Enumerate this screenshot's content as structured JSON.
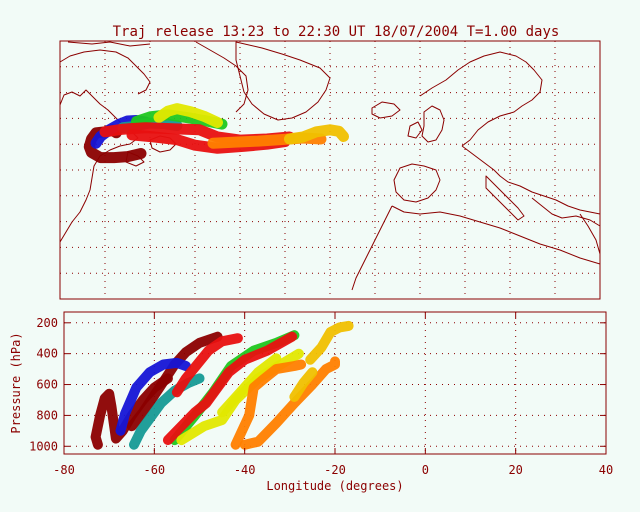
{
  "chart_data": [
    {
      "type": "map",
      "title": "Traj release 13:23 to 22:30 UT 18/07/2004    T=1.00 days",
      "grid": true,
      "colors": {
        "frame": "#8b0000",
        "coast": "#8b0000",
        "grid": "#8b0000",
        "text": "#8b0000",
        "background": "#f2fbf7"
      },
      "lon_range": [
        -80,
        40
      ],
      "lat_range": [
        20,
        70
      ],
      "trajectories": [
        {
          "color": "#8b0000",
          "lon": [
            -67.5,
            -68.5,
            -70,
            -72,
            -73,
            -73.5,
            -73,
            -71,
            -68,
            -65,
            -62
          ],
          "lat": [
            52.2,
            52.8,
            52.4,
            52.2,
            51.0,
            49.5,
            48.4,
            47.4,
            47.4,
            47.6,
            48.2
          ]
        },
        {
          "color": "#1515d6",
          "lon": [
            -72,
            -71,
            -69,
            -67,
            -65,
            -63,
            -61
          ],
          "lat": [
            50.2,
            51.5,
            52.8,
            53.8,
            54.5,
            54.6,
            54.3
          ]
        },
        {
          "color": "#159a95",
          "lon": [
            -66,
            -64,
            -62,
            -60,
            -57,
            -54
          ],
          "lat": [
            53.2,
            53.4,
            53.8,
            54.1,
            54.0,
            53.6
          ]
        },
        {
          "color": "#1fc71f",
          "lon": [
            -63,
            -60,
            -56,
            -52,
            -48,
            -44
          ],
          "lat": [
            54.4,
            55.3,
            55.7,
            55.2,
            54.6,
            53.9
          ]
        },
        {
          "color": "#e1e800",
          "lon": [
            -58,
            -56,
            -54,
            -51,
            -48,
            -45
          ],
          "lat": [
            55.2,
            56.4,
            56.9,
            56.3,
            55.4,
            54.2
          ]
        },
        {
          "color": "#e81010",
          "lon": [
            -70,
            -66,
            -61,
            -55,
            -49,
            -45,
            -40,
            -34,
            -29
          ],
          "lat": [
            52.4,
            52.9,
            53.2,
            53.0,
            52.8,
            51.4,
            50.8,
            51.0,
            51.4
          ]
        },
        {
          "color": "#e81010",
          "lon": [
            -64,
            -59,
            -54,
            -50,
            -45,
            -39,
            -34,
            -30
          ],
          "lat": [
            51.8,
            51.4,
            50.9,
            49.8,
            49.2,
            49.6,
            50.0,
            50.5
          ]
        },
        {
          "color": "#ff8000",
          "lon": [
            -46,
            -41,
            -36,
            -31,
            -26,
            -22
          ],
          "lat": [
            50.2,
            50.4,
            50.6,
            50.9,
            51.2,
            51.0
          ]
        },
        {
          "color": "#f0c000",
          "lon": [
            -29,
            -26,
            -23,
            -20,
            -18,
            -17
          ],
          "lat": [
            51.0,
            51.4,
            52.4,
            52.8,
            52.5,
            51.5
          ]
        }
      ]
    },
    {
      "type": "line",
      "xlabel": "Longitude  (degrees)",
      "ylabel": "Pressure  (hPa)",
      "xlim": [
        -80,
        40
      ],
      "ylim": [
        1050,
        130
      ],
      "xticks": [
        -80,
        -60,
        -40,
        -20,
        0,
        20,
        40
      ],
      "yticks": [
        200,
        400,
        600,
        800,
        1000
      ],
      "series": [
        {
          "color": "#8b0000",
          "x": [
            -72.5,
            -73,
            -72,
            -71,
            -70,
            -69.5,
            -68.5,
            -67,
            -65,
            -62.5,
            -60,
            -57
          ],
          "y": [
            990,
            940,
            800,
            690,
            660,
            740,
            950,
            900,
            800,
            700,
            620,
            560
          ]
        },
        {
          "color": "#8b0000",
          "x": [
            -65,
            -62.5,
            -60,
            -57.5,
            -55.5,
            -53,
            -50,
            -46
          ],
          "y": [
            870,
            780,
            670,
            560,
            470,
            390,
            330,
            290
          ]
        },
        {
          "color": "#1515d6",
          "x": [
            -67.5,
            -66.5,
            -64,
            -61,
            -58,
            -55,
            -53
          ],
          "y": [
            900,
            790,
            620,
            520,
            470,
            460,
            480
          ]
        },
        {
          "color": "#159a95",
          "x": [
            -64.5,
            -63,
            -61,
            -58.5,
            -55.5,
            -52.5,
            -50
          ],
          "y": [
            990,
            900,
            820,
            720,
            640,
            590,
            560
          ]
        },
        {
          "color": "#1fc71f",
          "x": [
            -55.5,
            -51,
            -47,
            -43,
            -38,
            -33,
            -29
          ],
          "y": [
            960,
            800,
            650,
            480,
            380,
            330,
            280
          ]
        },
        {
          "color": "#e81010",
          "x": [
            -57,
            -54,
            -51,
            -48.5,
            -46.5,
            -43.5,
            -40,
            -35,
            -29.5
          ],
          "y": [
            960,
            870,
            780,
            720,
            640,
            520,
            440,
            380,
            290
          ]
        },
        {
          "color": "#e81010",
          "x": [
            -55,
            -53,
            -50.5,
            -48,
            -45,
            -41.5
          ],
          "y": [
            650,
            560,
            470,
            380,
            320,
            300
          ]
        },
        {
          "color": "#e1e800",
          "x": [
            -54,
            -49,
            -45,
            -42,
            -37,
            -32,
            -28
          ],
          "y": [
            960,
            870,
            830,
            700,
            560,
            470,
            400
          ]
        },
        {
          "color": "#e1e800",
          "x": [
            -45,
            -41,
            -37,
            -33
          ],
          "y": [
            780,
            650,
            520,
            430
          ]
        },
        {
          "color": "#ff8000",
          "x": [
            -42,
            -39,
            -38,
            -36,
            -33,
            -29,
            -27.5
          ],
          "y": [
            990,
            800,
            620,
            570,
            500,
            480,
            470
          ]
        },
        {
          "color": "#ff8000",
          "x": [
            -40,
            -37,
            -33,
            -29,
            -25,
            -22,
            -20,
            -20
          ],
          "y": [
            990,
            970,
            850,
            720,
            600,
            500,
            470,
            450
          ]
        },
        {
          "color": "#f0c000",
          "x": [
            -25.5,
            -23,
            -21,
            -19,
            -17
          ],
          "y": [
            440,
            360,
            260,
            230,
            220
          ]
        },
        {
          "color": "#f0c000",
          "x": [
            -29,
            -27,
            -25
          ],
          "y": [
            680,
            590,
            520
          ]
        }
      ]
    }
  ]
}
